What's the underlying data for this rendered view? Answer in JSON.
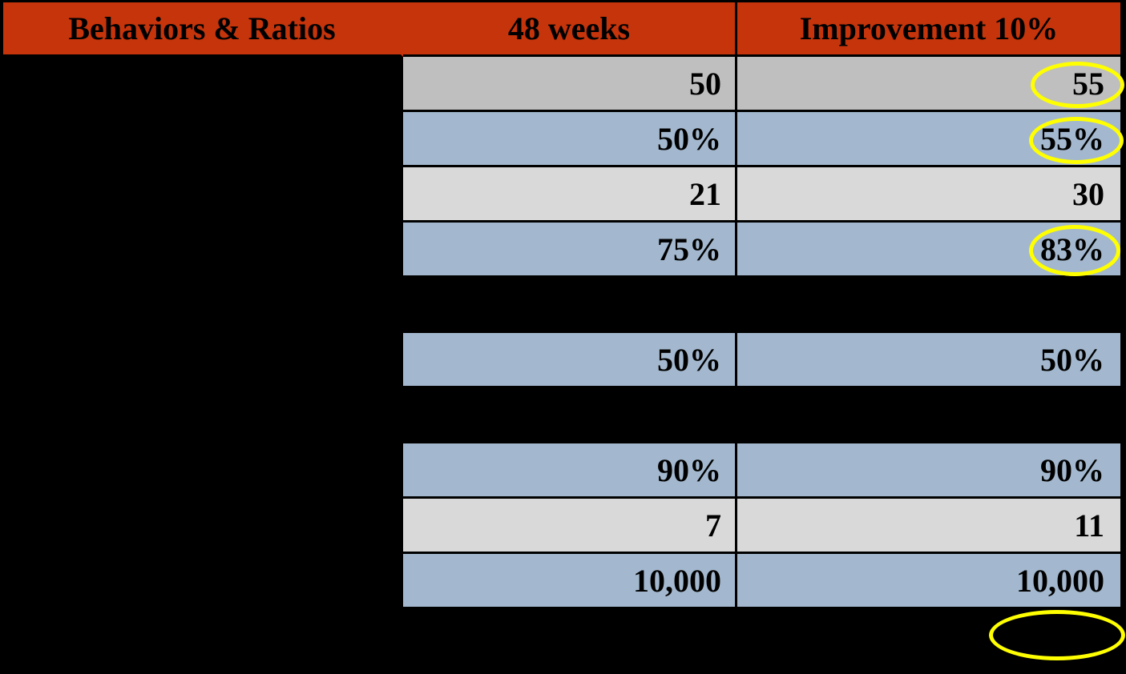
{
  "colors": {
    "background": "#000000",
    "header_red": "#C5340B",
    "row_blue": "#A3B8CE",
    "row_gray_dark": "#BFBFBF",
    "row_gray_light": "#D9D9D9",
    "highlight_yellow": "#FFFF00",
    "text": "#000000"
  },
  "table": {
    "columns": [
      {
        "label": "Behaviors & Ratios"
      },
      {
        "label": "48 weeks"
      },
      {
        "label": "Improvement 10%"
      }
    ],
    "rows": [
      {
        "label": "",
        "week48": "50",
        "improvement": "55",
        "style": "gray_dark",
        "improvement_circled": true
      },
      {
        "label": "",
        "week48": "50%",
        "improvement": "55%",
        "style": "blue",
        "improvement_circled": true
      },
      {
        "label": "",
        "week48": "21",
        "improvement": "30",
        "style": "gray_light",
        "improvement_circled": false
      },
      {
        "label": "",
        "week48": "75%",
        "improvement": "83%",
        "style": "blue",
        "improvement_circled": true
      },
      {
        "label": "",
        "week48": "",
        "improvement": "",
        "style": "black",
        "improvement_circled": false
      },
      {
        "label": "",
        "week48": "50%",
        "improvement": "50%",
        "style": "blue",
        "improvement_circled": false
      },
      {
        "label": "",
        "week48": "",
        "improvement": "",
        "style": "black",
        "improvement_circled": false
      },
      {
        "label": "",
        "week48": "90%",
        "improvement": "90%",
        "style": "blue",
        "improvement_circled": false
      },
      {
        "label": "",
        "week48": "7",
        "improvement": "11",
        "style": "gray_light",
        "improvement_circled": false
      },
      {
        "label": "",
        "week48": "10,000",
        "improvement": "10,000",
        "style": "blue",
        "improvement_circled": false
      }
    ]
  },
  "annotations": {
    "highlights": [
      {
        "shape": "yellow-ellipse",
        "circled_value": "55"
      },
      {
        "shape": "yellow-ellipse",
        "circled_value": "55%"
      },
      {
        "shape": "yellow-ellipse",
        "circled_value": "83%"
      },
      {
        "shape": "yellow-ellipse",
        "circled_value": ""
      }
    ]
  }
}
